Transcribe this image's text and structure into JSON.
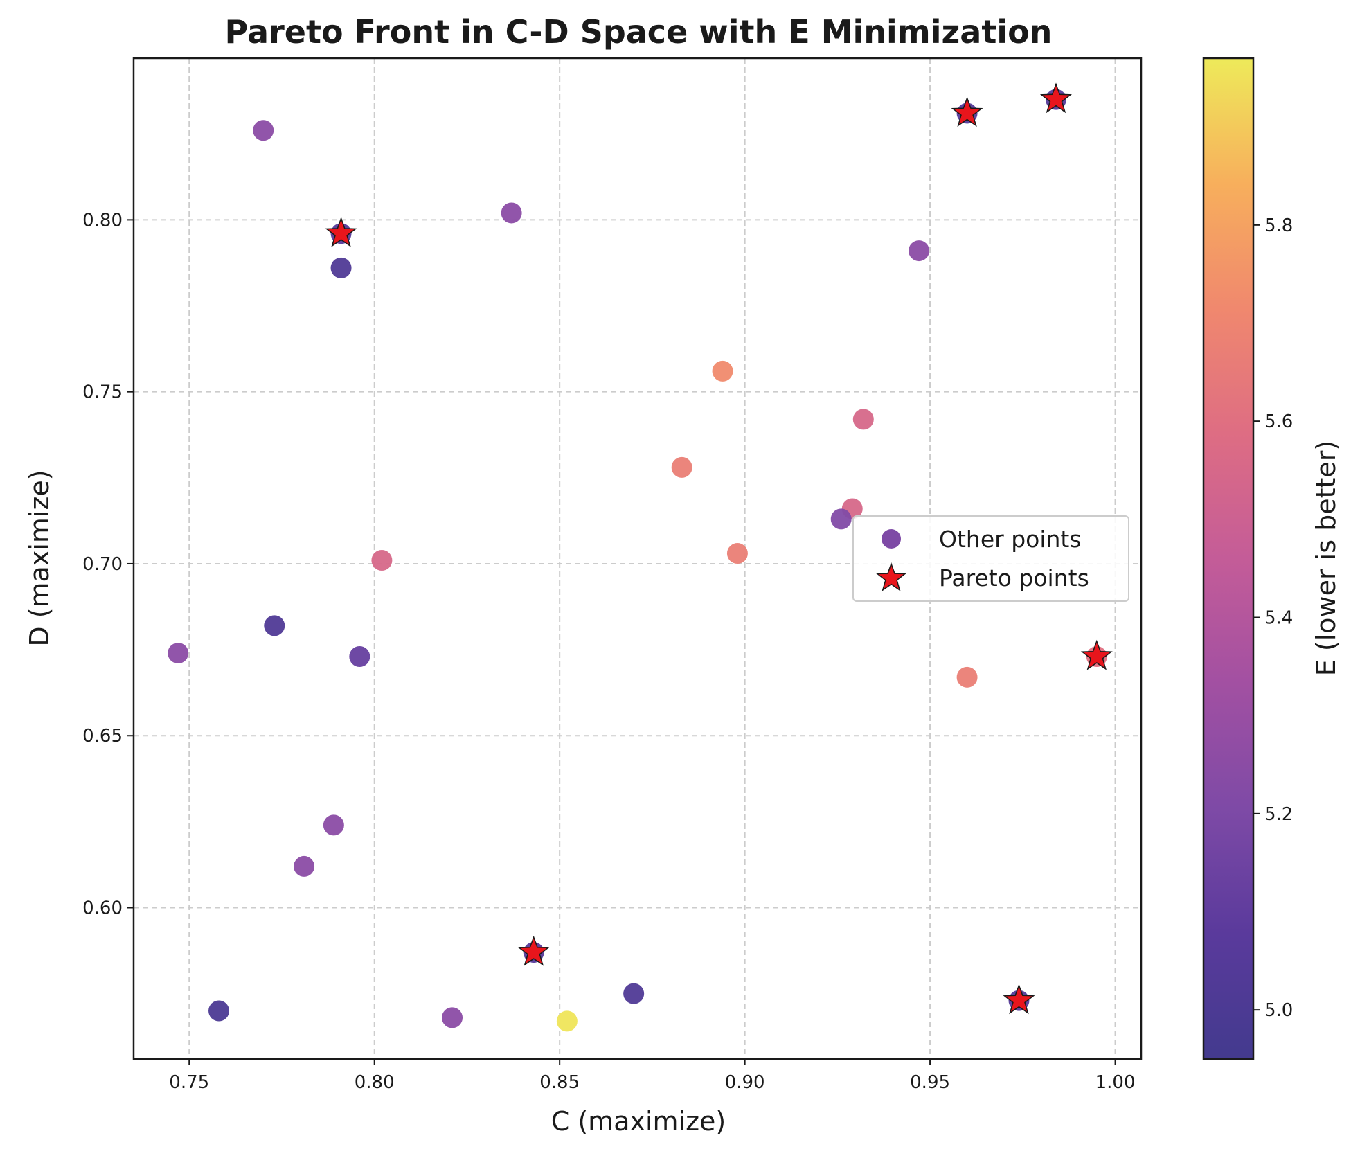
{
  "chart_data": {
    "type": "scatter",
    "title": "Pareto Front in C-D Space with E Minimization",
    "xlabel": "C (maximize)",
    "ylabel": "D (maximize)",
    "xlim": [
      0.735,
      1.007
    ],
    "ylim": [
      0.556,
      0.847
    ],
    "xticks": [
      0.75,
      0.8,
      0.85,
      0.9,
      0.95,
      1.0
    ],
    "xtick_labels": [
      "0.75",
      "0.80",
      "0.85",
      "0.90",
      "0.95",
      "1.00"
    ],
    "yticks": [
      0.6,
      0.65,
      0.7,
      0.75,
      0.8
    ],
    "ytick_labels": [
      "0.60",
      "0.65",
      "0.70",
      "0.75",
      "0.80"
    ],
    "grid": true,
    "colorbar": {
      "label": "E (lower is better)",
      "range": [
        4.95,
        5.97
      ],
      "ticks": [
        5.0,
        5.2,
        5.4,
        5.6,
        5.8
      ],
      "tick_labels": [
        "5.0",
        "5.2",
        "5.4",
        "5.6",
        "5.8"
      ],
      "colormap": "plasma"
    },
    "legend": {
      "position": "center-right",
      "entries": [
        "Other points",
        "Pareto points"
      ]
    },
    "series": [
      {
        "name": "Other points",
        "marker": "circle",
        "points": [
          {
            "x": 0.77,
            "y": 0.826,
            "e": 5.25
          },
          {
            "x": 0.837,
            "y": 0.802,
            "e": 5.25
          },
          {
            "x": 0.791,
            "y": 0.786,
            "e": 5.02
          },
          {
            "x": 0.947,
            "y": 0.791,
            "e": 5.25
          },
          {
            "x": 0.894,
            "y": 0.756,
            "e": 5.72
          },
          {
            "x": 0.932,
            "y": 0.742,
            "e": 5.55
          },
          {
            "x": 0.883,
            "y": 0.728,
            "e": 5.67
          },
          {
            "x": 0.929,
            "y": 0.716,
            "e": 5.55
          },
          {
            "x": 0.926,
            "y": 0.713,
            "e": 5.22
          },
          {
            "x": 0.898,
            "y": 0.703,
            "e": 5.67
          },
          {
            "x": 0.802,
            "y": 0.701,
            "e": 5.55
          },
          {
            "x": 0.773,
            "y": 0.682,
            "e": 5.02
          },
          {
            "x": 0.747,
            "y": 0.674,
            "e": 5.25
          },
          {
            "x": 0.796,
            "y": 0.673,
            "e": 5.12
          },
          {
            "x": 0.96,
            "y": 0.667,
            "e": 5.67
          },
          {
            "x": 0.789,
            "y": 0.624,
            "e": 5.25
          },
          {
            "x": 0.781,
            "y": 0.612,
            "e": 5.25
          },
          {
            "x": 0.758,
            "y": 0.57,
            "e": 5.0
          },
          {
            "x": 0.87,
            "y": 0.575,
            "e": 5.02
          },
          {
            "x": 0.821,
            "y": 0.568,
            "e": 5.25
          },
          {
            "x": 0.852,
            "y": 0.567,
            "e": 5.96
          }
        ]
      },
      {
        "name": "Pareto points",
        "marker": "star",
        "color": "#e8151c",
        "points": [
          {
            "x": 0.984,
            "y": 0.835,
            "e": 5.05
          },
          {
            "x": 0.96,
            "y": 0.831,
            "e": 5.05
          },
          {
            "x": 0.791,
            "y": 0.796,
            "e": 5.05
          },
          {
            "x": 0.995,
            "y": 0.673,
            "e": 5.6
          },
          {
            "x": 0.843,
            "y": 0.587,
            "e": 5.05
          },
          {
            "x": 0.974,
            "y": 0.573,
            "e": 5.05
          }
        ]
      }
    ]
  }
}
